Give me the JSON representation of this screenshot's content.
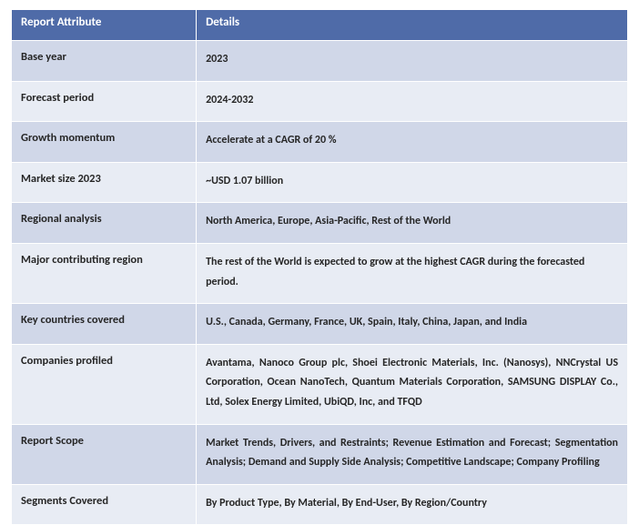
{
  "table": {
    "header": {
      "attr": "Report Attribute",
      "detail": "Details"
    },
    "rows": [
      {
        "attr": "Base year",
        "detail": "2023"
      },
      {
        "attr": "Forecast period",
        "detail": "2024-2032"
      },
      {
        "attr": "Growth momentum",
        "detail": "Accelerate at a CAGR of 20 %"
      },
      {
        "attr": "Market size 2023",
        "detail": "~USD 1.07 billion"
      },
      {
        "attr": "Regional analysis",
        "detail": "North America, Europe, Asia-Pacific, Rest of the World"
      },
      {
        "attr": "Major contributing region",
        "detail": "The rest of the World is expected to grow at the highest CAGR during the forecasted period."
      },
      {
        "attr": "Key countries covered",
        "detail": "U.S., Canada, Germany, France, UK, Spain, Italy, China, Japan, and India"
      },
      {
        "attr": "Companies profiled",
        "detail": "Avantama, Nanoco Group plc, Shoei Electronic Materials, Inc. (Nanosys), NNCrystal US Corporation, Ocean NanoTech, Quantum Materials Corporation, SAMSUNG DISPLAY Co., Ltd, Solex Energy Limited, UbiQD, Inc, and TFQD"
      },
      {
        "attr": "Report Scope",
        "detail": "Market Trends, Drivers, and Restraints; Revenue Estimation and Forecast; Segmentation Analysis; Demand and Supply Side Analysis; Competitive Landscape; Company Profiling"
      },
      {
        "attr": "Segments Covered",
        "detail": "By Product Type, By Material, By End-User, By Region/Country"
      }
    ],
    "colors": {
      "header_bg": "#4f6ba8",
      "header_text": "#ffffff",
      "row_odd_bg": "#d0d7e8",
      "row_even_bg": "#e8ecf4",
      "border": "#ffffff",
      "text": "#262626"
    },
    "fonts": {
      "family": "Calibri",
      "header_size_pt": 10,
      "body_size_pt": 9.5
    },
    "col_widths_pct": [
      30,
      70
    ]
  }
}
